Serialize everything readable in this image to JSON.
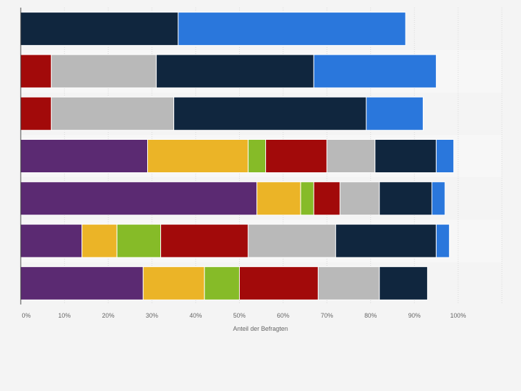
{
  "chart_data": {
    "type": "bar",
    "orientation": "horizontal",
    "stacked": true,
    "xlabel": "Anteil der Befragten",
    "xlim": [
      0,
      110
    ],
    "x_ticks": [
      "0%",
      "10%",
      "20%",
      "30%",
      "40%",
      "50%",
      "60%",
      "70%",
      "80%",
      "90%",
      "100%"
    ],
    "grid": true,
    "legend": "none",
    "rows": 7,
    "series": [
      {
        "color": "#5b2a72",
        "values": [
          0,
          0,
          0,
          29,
          54,
          14,
          28
        ]
      },
      {
        "color": "#ebb427",
        "values": [
          0,
          0,
          0,
          23,
          10,
          8,
          14
        ]
      },
      {
        "color": "#86bb28",
        "values": [
          0,
          0,
          0,
          4,
          3,
          10,
          8
        ]
      },
      {
        "color": "#a20a0a",
        "values": [
          0,
          7,
          7,
          14,
          6,
          20,
          18
        ]
      },
      {
        "color": "#b9b9b9",
        "values": [
          0,
          24,
          28,
          11,
          9,
          20,
          14
        ]
      },
      {
        "color": "#10263e",
        "values": [
          36,
          36,
          44,
          14,
          12,
          23,
          11
        ]
      },
      {
        "color": "#2a77dc",
        "values": [
          52,
          28,
          13,
          4,
          3,
          3,
          0
        ]
      }
    ]
  }
}
